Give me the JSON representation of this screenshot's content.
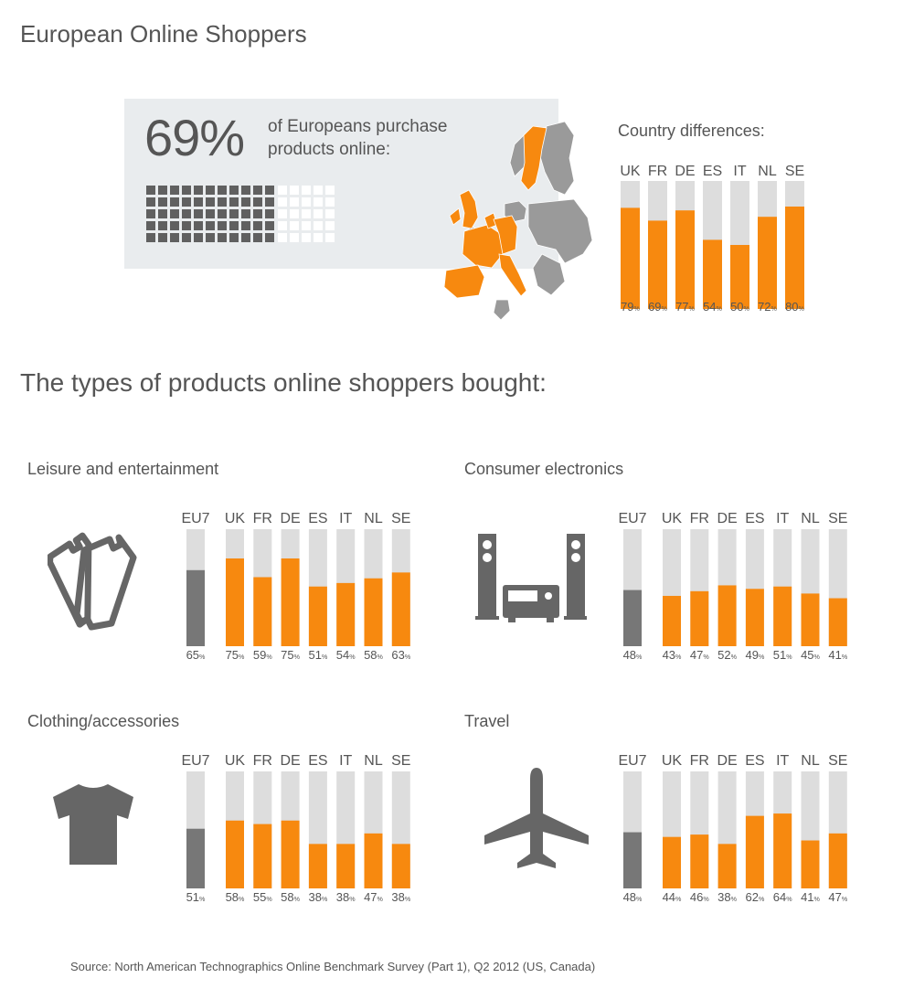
{
  "title": "European Online Shoppers",
  "headline": {
    "percent": "69%",
    "text_line1": "of Europeans purchase",
    "text_line2": "products online:",
    "waffle_filled_fraction": 0.69
  },
  "country_differences_title": "Country differences:",
  "section_title": "The types of products online shoppers bought:",
  "source": "Source: North American Technographics Online Benchmark Survey (Part 1), Q2 2012 (US, Canada)",
  "colors": {
    "orange": "#f7890f",
    "gray": "#777777",
    "light": "#dddddd",
    "map_gray": "#9a9a9a"
  },
  "icons": {
    "leisure": "ticket-icon",
    "electronics": "stereo-icon",
    "clothing": "tshirt-icon",
    "travel": "airplane-icon"
  },
  "chart_data": [
    {
      "type": "bar",
      "title": "Country differences:",
      "categories": [
        "UK",
        "FR",
        "DE",
        "ES",
        "IT",
        "NL",
        "SE"
      ],
      "values": [
        79,
        69,
        77,
        54,
        50,
        72,
        80
      ],
      "unit": "%",
      "ylim": [
        0,
        100
      ]
    },
    {
      "type": "bar",
      "title": "Leisure and entertainment",
      "categories": [
        "EU7",
        "UK",
        "FR",
        "DE",
        "ES",
        "IT",
        "NL",
        "SE"
      ],
      "values": [
        65,
        75,
        59,
        75,
        51,
        54,
        58,
        63
      ],
      "unit": "%",
      "ylim": [
        0,
        100
      ]
    },
    {
      "type": "bar",
      "title": "Consumer electronics",
      "categories": [
        "EU7",
        "UK",
        "FR",
        "DE",
        "ES",
        "IT",
        "NL",
        "SE"
      ],
      "values": [
        48,
        43,
        47,
        52,
        49,
        51,
        45,
        41
      ],
      "unit": "%",
      "ylim": [
        0,
        100
      ]
    },
    {
      "type": "bar",
      "title": "Clothing/accessories",
      "categories": [
        "EU7",
        "UK",
        "FR",
        "DE",
        "ES",
        "IT",
        "NL",
        "SE"
      ],
      "values": [
        51,
        58,
        55,
        58,
        38,
        38,
        47,
        38
      ],
      "unit": "%",
      "ylim": [
        0,
        100
      ]
    },
    {
      "type": "bar",
      "title": "Travel",
      "categories": [
        "EU7",
        "UK",
        "FR",
        "DE",
        "ES",
        "IT",
        "NL",
        "SE"
      ],
      "values": [
        48,
        44,
        46,
        38,
        62,
        64,
        41,
        47
      ],
      "unit": "%",
      "ylim": [
        0,
        100
      ]
    }
  ]
}
